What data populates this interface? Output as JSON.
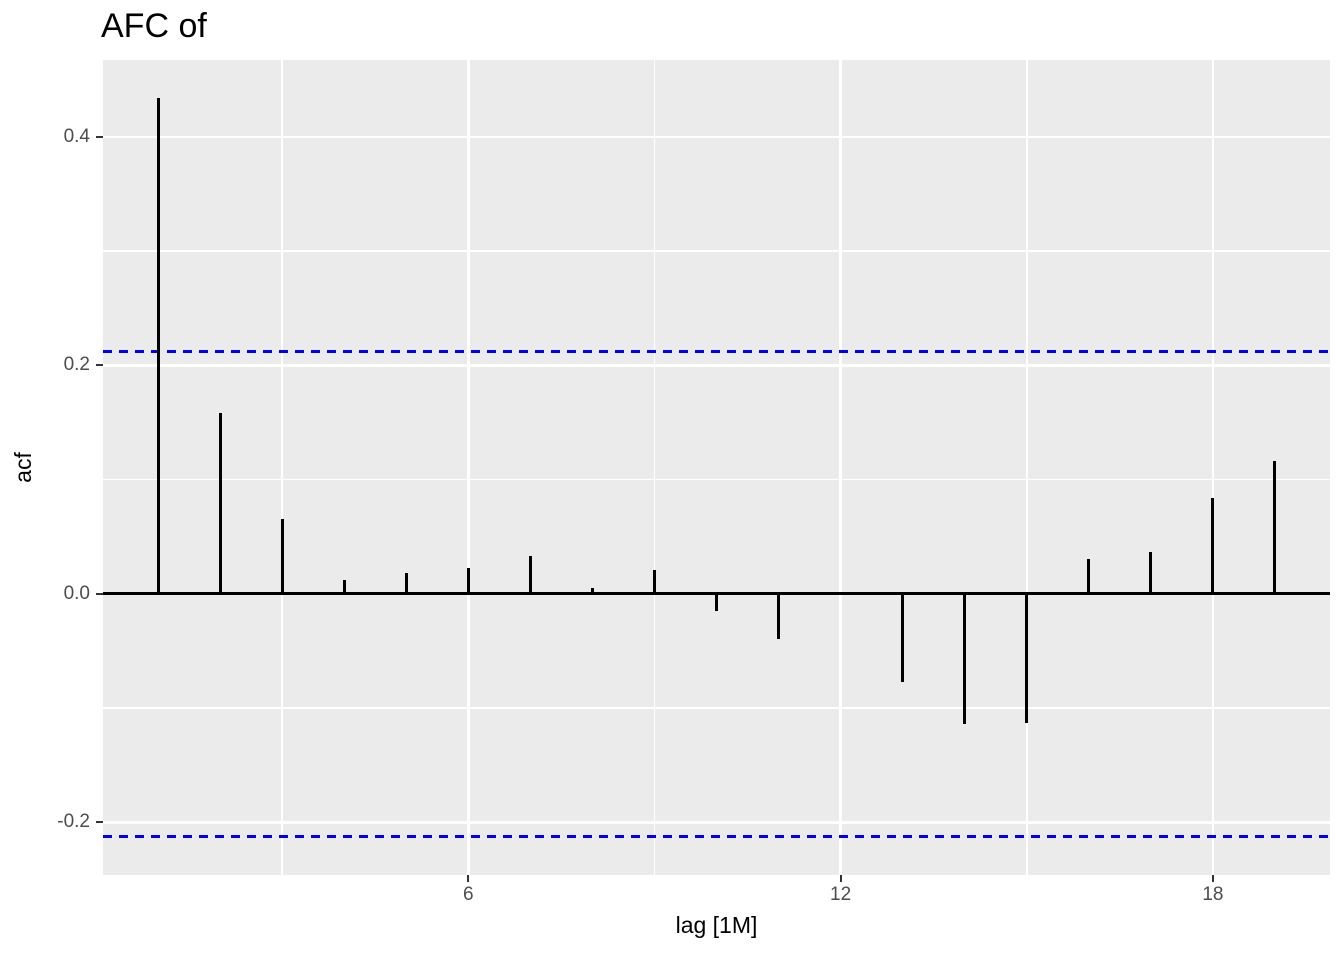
{
  "title": "AFC of",
  "colors": {
    "panel_bg": "#EBEBEB",
    "gridline": "#FFFFFF",
    "spike": "#000000",
    "zero_line": "#000000",
    "confidence_line": "#0000EE",
    "tick_label": "#4D4D4D",
    "axis_title": "#000000"
  },
  "chart_data": {
    "type": "bar",
    "subtype": "acf-spike",
    "title": "AFC of",
    "xlabel": "lag [1M]",
    "ylabel": "acf",
    "x": [
      1,
      2,
      3,
      4,
      5,
      6,
      7,
      8,
      9,
      10,
      11,
      12,
      13,
      14,
      15,
      16,
      17,
      18,
      19
    ],
    "values": [
      0.434,
      0.158,
      0.066,
      0.012,
      0.018,
      0.023,
      0.033,
      0.005,
      0.021,
      -0.015,
      -0.039,
      0.0,
      -0.077,
      -0.114,
      -0.113,
      0.031,
      0.037,
      0.084,
      0.116
    ],
    "confidence_bounds": {
      "upper": 0.212,
      "lower": -0.212,
      "line_style": "dashed"
    },
    "xlim": [
      0.113,
      19.887
    ],
    "ylim": [
      -0.246,
      0.4674
    ],
    "x_ticks": [
      {
        "label": "6",
        "value": 6
      },
      {
        "label": "12",
        "value": 12
      },
      {
        "label": "18",
        "value": 18
      }
    ],
    "y_ticks": [
      {
        "label": "0.4",
        "value": 0.4
      },
      {
        "label": "0.2",
        "value": 0.2
      },
      {
        "label": "0.0",
        "value": 0.0
      },
      {
        "label": "-0.2",
        "value": -0.2
      }
    ],
    "x_minor_gridlines": [
      3,
      9,
      15
    ],
    "y_minor_gridlines": [
      0.3,
      0.1,
      -0.1
    ],
    "grid": true,
    "legend_position": "none"
  }
}
